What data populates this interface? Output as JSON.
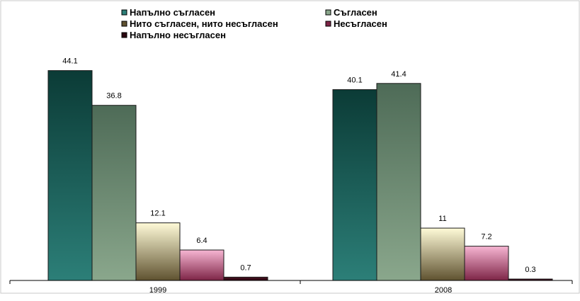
{
  "chart_data": {
    "type": "bar",
    "title": "",
    "xlabel": "",
    "ylabel": "",
    "categories": [
      "1999",
      "2008"
    ],
    "ylim": [
      0,
      50
    ],
    "grid": false,
    "legend_position": "top",
    "series": [
      {
        "name": "Напълно съгласен",
        "values": [
          44.1,
          40.1
        ],
        "colors": [
          "#0b3b36",
          "#2c7f78"
        ]
      },
      {
        "name": "Съгласен",
        "values": [
          36.8,
          41.4
        ],
        "colors": [
          "#4e6b57",
          "#8aa78c"
        ]
      },
      {
        "name": "Нито съгласен, нито несъгласен",
        "values": [
          12.1,
          11
        ],
        "colors": [
          "#fffbd8",
          "#5f5230"
        ]
      },
      {
        "name": "Несъгласен",
        "values": [
          6.4,
          7.2
        ],
        "colors": [
          "#f7b6d3",
          "#7d2446"
        ]
      },
      {
        "name": "Напълно несъгласен",
        "values": [
          0.7,
          0.3
        ],
        "colors": [
          "#4a1020",
          "#2a0610"
        ]
      }
    ],
    "data_labels": [
      [
        "44.1",
        "40.1"
      ],
      [
        "36.8",
        "41.4"
      ],
      [
        "12.1",
        "11"
      ],
      [
        "6.4",
        "7.2"
      ],
      [
        "0.7",
        "0.3"
      ]
    ]
  }
}
